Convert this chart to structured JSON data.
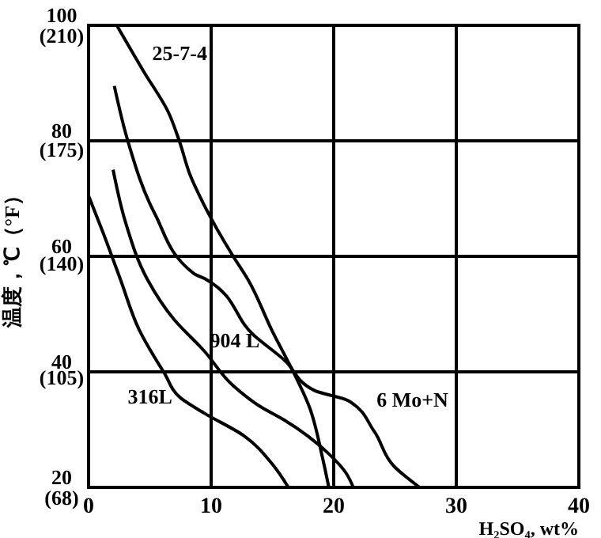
{
  "chart_data": {
    "type": "line",
    "y2label": "温度，℃（°F）",
    "xlabel": "H₂SO₄, wt%",
    "xlim": [
      0,
      40
    ],
    "ylim": [
      20,
      100
    ],
    "xticks": [
      0,
      10,
      20,
      30,
      40
    ],
    "yticks": [
      20,
      40,
      60,
      80,
      100
    ],
    "y2lim": [
      68,
      210
    ],
    "y2ticks": [
      {
        "value": 68,
        "label": "(68)"
      },
      {
        "value": 105,
        "label": "(105)"
      },
      {
        "value": 140,
        "label": "(140)"
      },
      {
        "value": 175,
        "label": "(175)"
      },
      {
        "value": 210,
        "label": "(210)"
      }
    ],
    "grid": true,
    "marker": "none",
    "line_style": "solid",
    "series": [
      {
        "name": "25-7-4",
        "color": "#000000",
        "x": [
          2.3,
          4.5,
          6.5,
          7.4,
          8.3,
          9.4,
          11.8,
          13,
          15,
          16.7,
          18,
          19.1,
          19.6
        ],
        "values": [
          100,
          92,
          85,
          80,
          74,
          69,
          60,
          56,
          47,
          40,
          34,
          25,
          20
        ]
      },
      {
        "name": "904 L",
        "color": "#000000",
        "x": [
          2,
          3,
          4.8,
          7,
          9.4,
          11.8,
          14,
          16,
          19.6,
          21,
          21.6
        ],
        "values": [
          75,
          66,
          56,
          49,
          43.7,
          37.6,
          34,
          31.6,
          25.8,
          22.5,
          20
        ]
      },
      {
        "name": "316L",
        "color": "#000000",
        "x": [
          0,
          1.2,
          2.6,
          4.1,
          6.2,
          7.5,
          9.4,
          12.7,
          15,
          16.3
        ],
        "values": [
          70.5,
          64,
          56,
          47.4,
          39.7,
          35.5,
          32.9,
          28.9,
          24,
          20
        ]
      },
      {
        "name": "6 Mo+N",
        "color": "#000000",
        "x": [
          2.1,
          3.2,
          5.4,
          8.6,
          9.6,
          13.5,
          16,
          18.4,
          21.2,
          23.3,
          24.9,
          27
        ],
        "values": [
          89.5,
          80,
          67.4,
          57,
          56,
          46.3,
          42,
          36.8,
          35,
          29.7,
          23.7,
          20
        ]
      }
    ]
  }
}
